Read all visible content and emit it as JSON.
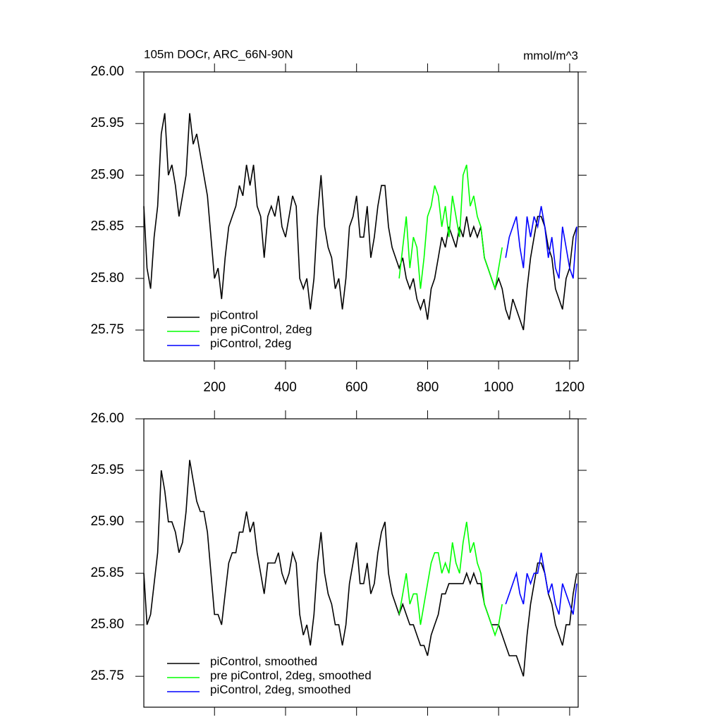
{
  "chart_data": [
    {
      "type": "line",
      "title": "105m DOCr, ARC_66N-90N",
      "units": "mmol/m^3",
      "xlim": [
        1,
        1224
      ],
      "ylim": [
        25.72,
        26.0
      ],
      "xticks": [
        200,
        400,
        600,
        800,
        1000,
        1200
      ],
      "show_xtick_labels": true,
      "yticks": [
        {
          "value": 26.0,
          "label": "26.00"
        },
        {
          "value": 25.95,
          "label": "25.95"
        },
        {
          "value": 25.9,
          "label": "25.90"
        },
        {
          "value": 25.85,
          "label": "25.85"
        },
        {
          "value": 25.8,
          "label": "25.80"
        },
        {
          "value": 25.75,
          "label": "25.75"
        }
      ],
      "series": [
        {
          "name": "piControl",
          "color": "#000000",
          "x": [
            1,
            10,
            20,
            30,
            40,
            50,
            60,
            70,
            80,
            90,
            100,
            110,
            120,
            130,
            140,
            150,
            160,
            170,
            180,
            190,
            200,
            210,
            220,
            230,
            240,
            250,
            260,
            270,
            280,
            290,
            300,
            310,
            320,
            330,
            340,
            350,
            360,
            370,
            380,
            390,
            400,
            410,
            420,
            430,
            440,
            450,
            460,
            470,
            480,
            490,
            500,
            510,
            520,
            530,
            540,
            550,
            560,
            570,
            580,
            590,
            600,
            610,
            620,
            630,
            640,
            650,
            660,
            670,
            680,
            690,
            700,
            710,
            720,
            730,
            740,
            750,
            760,
            770,
            780,
            790,
            800,
            810,
            820,
            830,
            840,
            850,
            860,
            870,
            880,
            890,
            900,
            910,
            920,
            930,
            940,
            950,
            960,
            970,
            980,
            990,
            1000,
            1010,
            1020,
            1030,
            1040,
            1050,
            1060,
            1070,
            1080,
            1090,
            1100,
            1110,
            1120,
            1130,
            1140,
            1150,
            1160,
            1170,
            1180,
            1190,
            1200,
            1210,
            1220
          ],
          "values": [
            25.87,
            25.81,
            25.79,
            25.84,
            25.87,
            25.94,
            25.96,
            25.9,
            25.91,
            25.89,
            25.86,
            25.88,
            25.9,
            25.96,
            25.93,
            25.94,
            25.92,
            25.9,
            25.88,
            25.84,
            25.8,
            25.81,
            25.78,
            25.82,
            25.85,
            25.86,
            25.87,
            25.89,
            25.88,
            25.91,
            25.89,
            25.91,
            25.87,
            25.86,
            25.82,
            25.86,
            25.87,
            25.86,
            25.88,
            25.85,
            25.84,
            25.86,
            25.88,
            25.87,
            25.8,
            25.79,
            25.8,
            25.77,
            25.8,
            25.86,
            25.9,
            25.85,
            25.83,
            25.82,
            25.79,
            25.8,
            25.77,
            25.8,
            25.85,
            25.86,
            25.88,
            25.84,
            25.84,
            25.87,
            25.82,
            25.84,
            25.87,
            25.89,
            25.89,
            25.85,
            25.83,
            25.82,
            25.81,
            25.82,
            25.8,
            25.79,
            25.8,
            25.78,
            25.77,
            25.78,
            25.76,
            25.79,
            25.8,
            25.82,
            25.84,
            25.83,
            25.85,
            25.84,
            25.83,
            25.85,
            25.84,
            25.86,
            25.84,
            25.85,
            25.84,
            25.85,
            25.82,
            25.81,
            25.8,
            25.79,
            25.8,
            25.79,
            25.77,
            25.76,
            25.78,
            25.77,
            25.76,
            25.75,
            25.79,
            25.82,
            25.84,
            25.86,
            25.86,
            25.85,
            25.83,
            25.82,
            25.79,
            25.78,
            25.77,
            25.8,
            25.81,
            25.84,
            25.85
          ]
        },
        {
          "name": "pre piControl, 2deg",
          "color": "#00ff00",
          "x": [
            720,
            730,
            740,
            750,
            760,
            770,
            780,
            790,
            800,
            810,
            820,
            830,
            840,
            850,
            860,
            870,
            880,
            890,
            900,
            910,
            920,
            930,
            940,
            950,
            960,
            970,
            980,
            990,
            1000,
            1010
          ],
          "values": [
            25.8,
            25.83,
            25.86,
            25.81,
            25.84,
            25.83,
            25.79,
            25.82,
            25.86,
            25.87,
            25.89,
            25.88,
            25.85,
            25.87,
            25.84,
            25.88,
            25.86,
            25.84,
            25.9,
            25.91,
            25.87,
            25.88,
            25.86,
            25.85,
            25.82,
            25.81,
            25.8,
            25.79,
            25.81,
            25.83
          ]
        },
        {
          "name": "piControl, 2deg",
          "color": "#0000ff",
          "x": [
            1020,
            1030,
            1040,
            1050,
            1060,
            1070,
            1080,
            1090,
            1100,
            1110,
            1120,
            1130,
            1140,
            1150,
            1160,
            1170,
            1180,
            1190,
            1200,
            1210,
            1220
          ],
          "values": [
            25.82,
            25.84,
            25.85,
            25.86,
            25.83,
            25.81,
            25.86,
            25.84,
            25.86,
            25.85,
            25.87,
            25.85,
            25.82,
            25.84,
            25.81,
            25.8,
            25.85,
            25.83,
            25.81,
            25.8,
            25.85
          ]
        }
      ]
    },
    {
      "type": "line",
      "xlim": [
        1,
        1224
      ],
      "ylim": [
        25.72,
        26.0
      ],
      "xticks": [
        200,
        400,
        600,
        800,
        1000,
        1200
      ],
      "show_xtick_labels": false,
      "yticks": [
        {
          "value": 26.0,
          "label": "26.00"
        },
        {
          "value": 25.95,
          "label": "25.95"
        },
        {
          "value": 25.9,
          "label": "25.90"
        },
        {
          "value": 25.85,
          "label": "25.85"
        },
        {
          "value": 25.8,
          "label": "25.80"
        },
        {
          "value": 25.75,
          "label": "25.75"
        }
      ],
      "series": [
        {
          "name": "piControl, smoothed",
          "color": "#000000",
          "x": [
            1,
            10,
            20,
            30,
            40,
            50,
            60,
            70,
            80,
            90,
            100,
            110,
            120,
            130,
            140,
            150,
            160,
            170,
            180,
            190,
            200,
            210,
            220,
            230,
            240,
            250,
            260,
            270,
            280,
            290,
            300,
            310,
            320,
            330,
            340,
            350,
            360,
            370,
            380,
            390,
            400,
            410,
            420,
            430,
            440,
            450,
            460,
            470,
            480,
            490,
            500,
            510,
            520,
            530,
            540,
            550,
            560,
            570,
            580,
            590,
            600,
            610,
            620,
            630,
            640,
            650,
            660,
            670,
            680,
            690,
            700,
            710,
            720,
            730,
            740,
            750,
            760,
            770,
            780,
            790,
            800,
            810,
            820,
            830,
            840,
            850,
            860,
            870,
            880,
            890,
            900,
            910,
            920,
            930,
            940,
            950,
            960,
            970,
            980,
            990,
            1000,
            1010,
            1020,
            1030,
            1040,
            1050,
            1060,
            1070,
            1080,
            1090,
            1100,
            1110,
            1120,
            1130,
            1140,
            1150,
            1160,
            1170,
            1180,
            1190,
            1200,
            1210,
            1220
          ],
          "values": [
            25.85,
            25.8,
            25.81,
            25.84,
            25.87,
            25.95,
            25.93,
            25.9,
            25.9,
            25.89,
            25.87,
            25.88,
            25.91,
            25.96,
            25.94,
            25.92,
            25.91,
            25.91,
            25.89,
            25.85,
            25.81,
            25.81,
            25.8,
            25.83,
            25.86,
            25.87,
            25.87,
            25.89,
            25.89,
            25.91,
            25.89,
            25.9,
            25.87,
            25.85,
            25.83,
            25.86,
            25.86,
            25.86,
            25.87,
            25.85,
            25.84,
            25.85,
            25.87,
            25.86,
            25.81,
            25.79,
            25.8,
            25.78,
            25.81,
            25.86,
            25.89,
            25.85,
            25.83,
            25.82,
            25.8,
            25.8,
            25.78,
            25.8,
            25.84,
            25.86,
            25.88,
            25.84,
            25.84,
            25.86,
            25.83,
            25.84,
            25.87,
            25.89,
            25.9,
            25.85,
            25.83,
            25.82,
            25.81,
            25.82,
            25.81,
            25.8,
            25.8,
            25.79,
            25.78,
            25.78,
            25.77,
            25.79,
            25.8,
            25.81,
            25.83,
            25.83,
            25.84,
            25.84,
            25.84,
            25.84,
            25.84,
            25.85,
            25.84,
            25.85,
            25.84,
            25.84,
            25.82,
            25.81,
            25.8,
            25.8,
            25.8,
            25.79,
            25.78,
            25.77,
            25.77,
            25.77,
            25.76,
            25.75,
            25.79,
            25.82,
            25.84,
            25.86,
            25.86,
            25.85,
            25.83,
            25.82,
            25.8,
            25.79,
            25.78,
            25.8,
            25.8,
            25.83,
            25.85
          ]
        },
        {
          "name": "pre piControl, 2deg, smoothed",
          "color": "#00ff00",
          "x": [
            720,
            730,
            740,
            750,
            760,
            770,
            780,
            790,
            800,
            810,
            820,
            830,
            840,
            850,
            860,
            870,
            880,
            890,
            900,
            910,
            920,
            930,
            940,
            950,
            960,
            970,
            980,
            990,
            1000,
            1010
          ],
          "values": [
            25.81,
            25.83,
            25.85,
            25.82,
            25.83,
            25.83,
            25.8,
            25.82,
            25.84,
            25.86,
            25.87,
            25.87,
            25.85,
            25.86,
            25.85,
            25.88,
            25.86,
            25.85,
            25.88,
            25.9,
            25.87,
            25.88,
            25.86,
            25.85,
            25.82,
            25.81,
            25.8,
            25.79,
            25.8,
            25.82
          ]
        },
        {
          "name": "piControl, 2deg, smoothed",
          "color": "#0000ff",
          "x": [
            1020,
            1030,
            1040,
            1050,
            1060,
            1070,
            1080,
            1090,
            1100,
            1110,
            1120,
            1130,
            1140,
            1150,
            1160,
            1170,
            1180,
            1190,
            1200,
            1210,
            1220
          ],
          "values": [
            25.82,
            25.83,
            25.84,
            25.85,
            25.83,
            25.82,
            25.85,
            25.84,
            25.85,
            25.85,
            25.87,
            25.85,
            25.83,
            25.84,
            25.82,
            25.81,
            25.84,
            25.83,
            25.82,
            25.81,
            25.84
          ]
        }
      ]
    }
  ]
}
